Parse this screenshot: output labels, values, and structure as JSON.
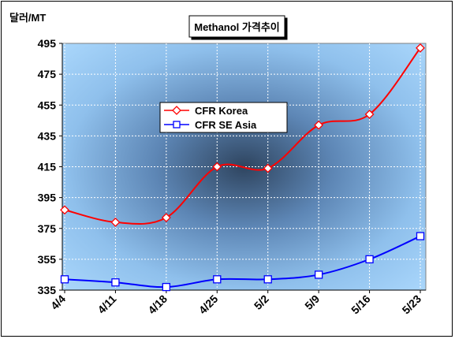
{
  "chart_data": {
    "type": "line",
    "title": "Methanol 가격추이",
    "unit_label": "달러/MT",
    "categories": [
      "4/4",
      "4/11",
      "4/18",
      "4/25",
      "5/2",
      "5/9",
      "5/16",
      "5/23"
    ],
    "ylim": [
      335,
      495
    ],
    "yticks": [
      335,
      355,
      375,
      395,
      415,
      435,
      455,
      475,
      495
    ],
    "grid": true,
    "legend_position": "upper-left-inside",
    "series": [
      {
        "name": "CFR Korea",
        "values": [
          387,
          379,
          382,
          415,
          414,
          442,
          449,
          492
        ],
        "color": "#ff0000",
        "marker": "diamond"
      },
      {
        "name": "CFR SE Asia",
        "values": [
          342,
          340,
          337,
          342,
          342,
          345,
          355,
          370
        ],
        "color": "#0000ff",
        "marker": "square"
      }
    ]
  }
}
